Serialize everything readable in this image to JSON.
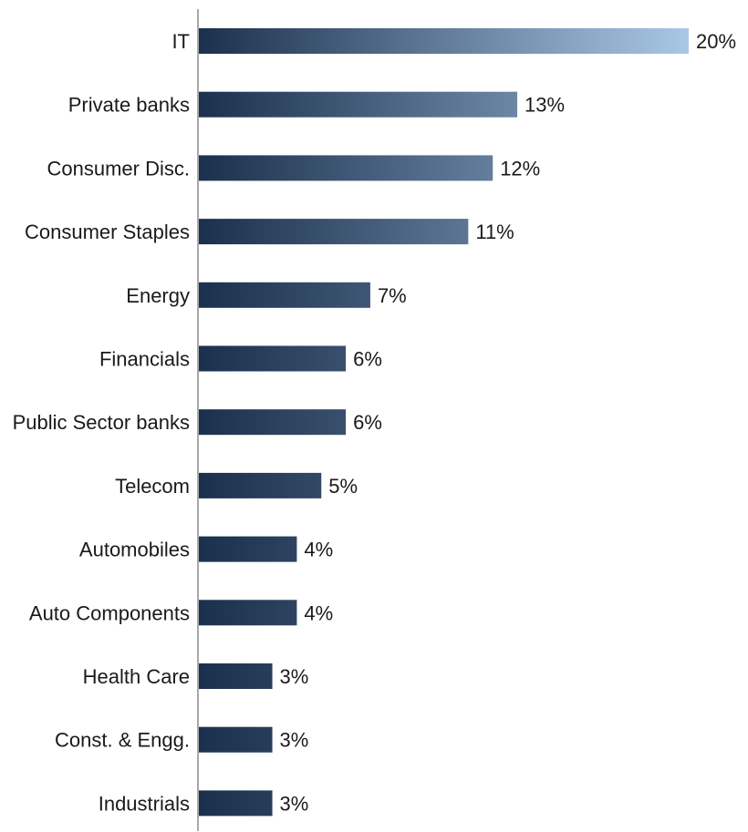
{
  "chart_data": {
    "type": "bar",
    "orientation": "horizontal",
    "title": "",
    "xlabel": "",
    "ylabel": "",
    "value_suffix": "%",
    "grid": false,
    "legend": "none",
    "xlim": [
      0,
      20
    ],
    "categories": [
      "IT",
      "Private banks",
      "Consumer Disc.",
      "Consumer Staples",
      "Energy",
      "Financials",
      "Public Sector banks",
      "Telecom",
      "Automobiles",
      "Auto Components",
      "Health Care",
      "Const. & Engg.",
      "Industrials"
    ],
    "values": [
      20,
      13,
      12,
      11,
      7,
      6,
      6,
      5,
      4,
      4,
      3,
      3,
      3
    ],
    "data_labels": [
      "20%",
      "13%",
      "12%",
      "11%",
      "7%",
      "6%",
      "6%",
      "5%",
      "4%",
      "4%",
      "3%",
      "3%",
      "3%"
    ],
    "colors": {
      "bar_start": "#1b304d",
      "bar_end_max": "#a9c8e6",
      "axis": "#8c8c8c",
      "text": "#1a1a1a"
    }
  }
}
